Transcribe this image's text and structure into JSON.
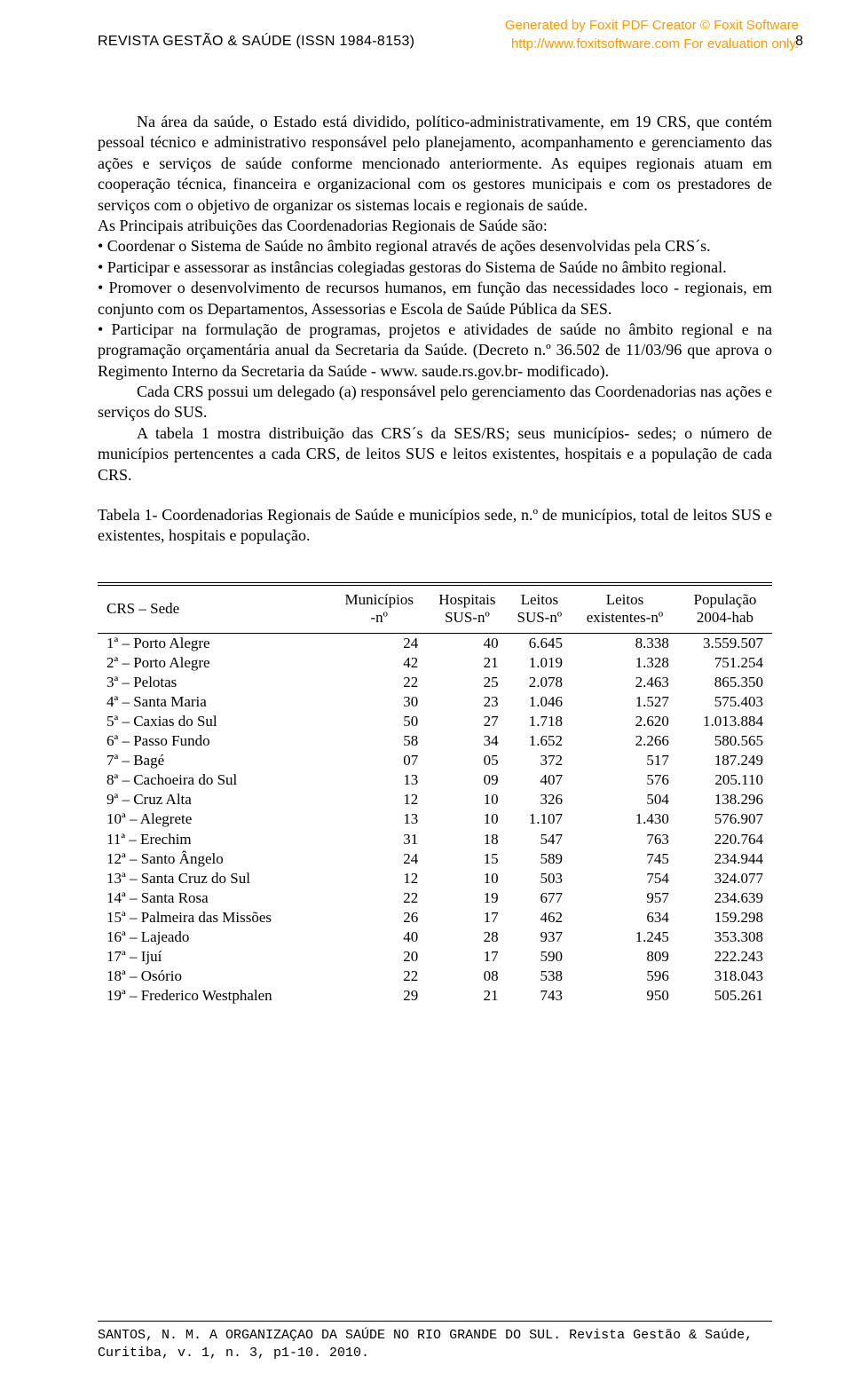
{
  "watermark": {
    "line1": "Generated by Foxit PDF Creator © Foxit Software",
    "line2_a": "http://www.foxitsoftware.com",
    "line2_b": "   For evaluation only."
  },
  "header": {
    "journal": "REVISTA GESTÃO & SAÚDE (ISSN 1984-8153)",
    "page_number": "8"
  },
  "paragraphs": {
    "p1": "Na área da saúde, o Estado está dividido, político-administrativamente, em 19 CRS, que contém pessoal técnico e administrativo responsável pelo planejamento, acompanhamento e gerenciamento das ações e serviços de saúde conforme mencionado anteriormente. As equipes regionais atuam em cooperação técnica, financeira e organizacional com os gestores municipais e com os prestadores de serviços com o objetivo de organizar os sistemas locais e regionais de saúde.",
    "p2": "As Principais atribuições das Coordenadorias Regionais de Saúde são:",
    "b1": "•          Coordenar o Sistema de Saúde no âmbito regional através de ações desenvolvidas pela CRS´s.",
    "b2": "•          Participar e assessorar as instâncias colegiadas gestoras do Sistema de Saúde no âmbito regional.",
    "b3": "•          Promover o desenvolvimento de recursos humanos, em função das necessidades loco - regionais, em conjunto com os Departamentos, Assessorias e Escola de Saúde Pública da SES.",
    "b4": "•          Participar na formulação de programas, projetos e atividades de saúde no âmbito regional e na programação orçamentária anual da Secretaria da Saúde. (Decreto n.º 36.502 de 11/03/96 que aprova o Regimento Interno da Secretaria da Saúde - www. saude.rs.gov.br- modificado).",
    "p3": "Cada CRS possui um delegado (a) responsável pelo gerenciamento das Coordenadorias nas ações e serviços do SUS.",
    "p4": "A tabela 1 mostra distribuição das CRS´s da SES/RS; seus municípios- sedes; o número de municípios pertencentes a cada CRS, de leitos SUS e leitos existentes, hospitais e a população de cada CRS."
  },
  "table": {
    "caption": "Tabela 1- Coordenadorias Regionais de Saúde e municípios sede, n.º de municípios, total de leitos SUS e existentes, hospitais e população.",
    "columns": [
      {
        "l1": "CRS – Sede",
        "l2": ""
      },
      {
        "l1": "Municípios",
        "l2": "-nº"
      },
      {
        "l1": "Hospitais",
        "l2": "SUS-nº"
      },
      {
        "l1": "Leitos",
        "l2": "SUS-nº"
      },
      {
        "l1": "Leitos",
        "l2": "existentes-nº"
      },
      {
        "l1": "População",
        "l2": "2004-hab"
      }
    ],
    "rows": [
      [
        "1ª – Porto Alegre",
        "24",
        "40",
        "6.645",
        "8.338",
        "3.559.507"
      ],
      [
        "2ª – Porto Alegre",
        "42",
        "21",
        "1.019",
        "1.328",
        "751.254"
      ],
      [
        "3ª – Pelotas",
        "22",
        "25",
        "2.078",
        "2.463",
        "865.350"
      ],
      [
        "4ª – Santa Maria",
        "30",
        "23",
        "1.046",
        "1.527",
        "575.403"
      ],
      [
        "5ª – Caxias do Sul",
        "50",
        "27",
        "1.718",
        "2.620",
        "1.013.884"
      ],
      [
        "6ª – Passo Fundo",
        "58",
        "34",
        "1.652",
        "2.266",
        "580.565"
      ],
      [
        "7ª – Bagé",
        "07",
        "05",
        "372",
        "517",
        "187.249"
      ],
      [
        "8ª – Cachoeira do Sul",
        "13",
        "09",
        "407",
        "576",
        "205.110"
      ],
      [
        "9ª – Cruz Alta",
        "12",
        "10",
        "326",
        "504",
        "138.296"
      ],
      [
        "10ª – Alegrete",
        "13",
        "10",
        "1.107",
        "1.430",
        "576.907"
      ],
      [
        "11ª – Erechim",
        "31",
        "18",
        "547",
        "763",
        "220.764"
      ],
      [
        "12ª – Santo Ângelo",
        "24",
        "15",
        "589",
        "745",
        "234.944"
      ],
      [
        "13ª – Santa Cruz do Sul",
        "12",
        "10",
        "503",
        "754",
        "324.077"
      ],
      [
        "14ª – Santa Rosa",
        "22",
        "19",
        "677",
        "957",
        "234.639"
      ],
      [
        "15ª – Palmeira das Missões",
        "26",
        "17",
        "462",
        "634",
        "159.298"
      ],
      [
        "16ª – Lajeado",
        "40",
        "28",
        "937",
        "1.245",
        "353.308"
      ],
      [
        "17ª – Ijuí",
        "20",
        "17",
        "590",
        "809",
        "222.243"
      ],
      [
        "18ª – Osório",
        "22",
        "08",
        "538",
        "596",
        "318.043"
      ],
      [
        "19ª – Frederico Westphalen",
        "29",
        "21",
        "743",
        "950",
        "505.261"
      ]
    ]
  },
  "footer": {
    "text": "SANTOS, N. M. A ORGANIZAÇAO DA SAÚDE NO RIO GRANDE DO SUL. Revista Gestão & Saúde, Curitiba, v. 1, n. 3, p1-10. 2010."
  }
}
